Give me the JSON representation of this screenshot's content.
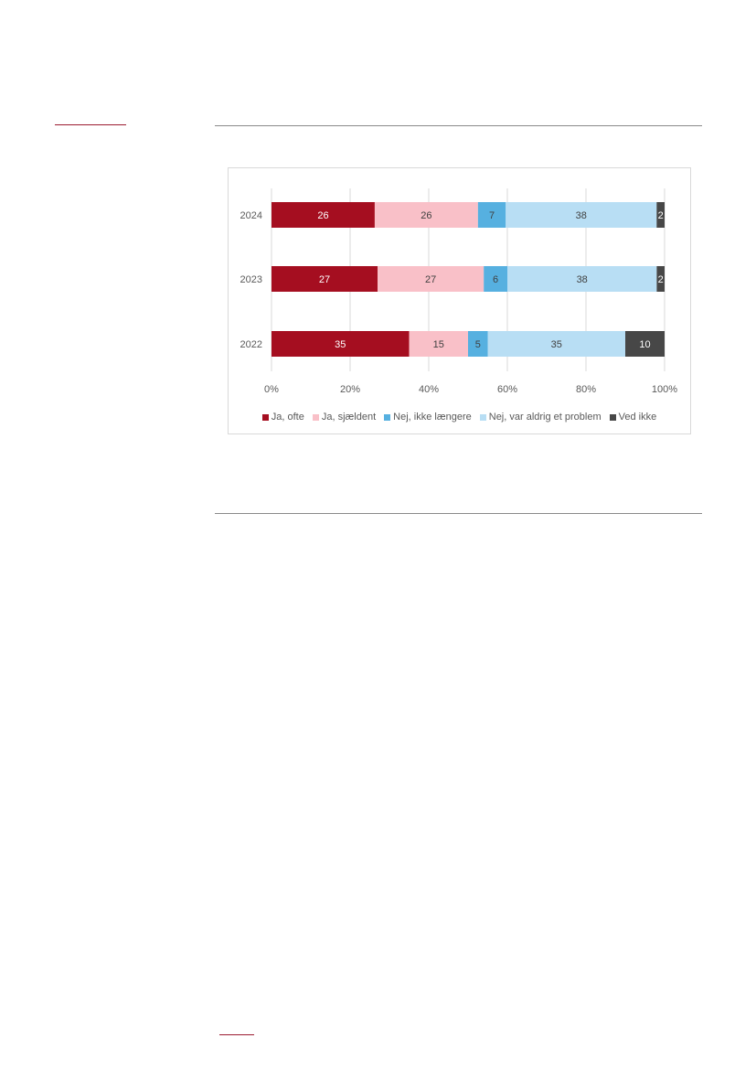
{
  "chart_data": {
    "type": "bar",
    "orientation": "horizontal",
    "stacked": "percent",
    "categories": [
      "2024",
      "2023",
      "2022"
    ],
    "series": [
      {
        "name": "Ja, ofte",
        "color": "#a50e20",
        "label_color": "#ffffff",
        "values": [
          26,
          27,
          35
        ]
      },
      {
        "name": "Ja, sjældent",
        "color": "#f9c0c8",
        "label_color": "#404040",
        "values": [
          26,
          27,
          15
        ]
      },
      {
        "name": "Nej, ikke længere",
        "color": "#56b0e0",
        "label_color": "#404040",
        "values": [
          7,
          6,
          5
        ]
      },
      {
        "name": "Nej, var aldrig et problem",
        "color": "#b8def4",
        "label_color": "#404040",
        "values": [
          38,
          38,
          35
        ]
      },
      {
        "name": "Ved ikke",
        "color": "#474747",
        "label_color": "#ffffff",
        "values": [
          2,
          2,
          10
        ]
      }
    ],
    "x_ticks": [
      "0%",
      "20%",
      "40%",
      "60%",
      "80%",
      "100%"
    ],
    "xlim": [
      0,
      100
    ],
    "grid": "vertical",
    "legend": "bottom",
    "title": "",
    "xlabel": "",
    "ylabel": ""
  }
}
